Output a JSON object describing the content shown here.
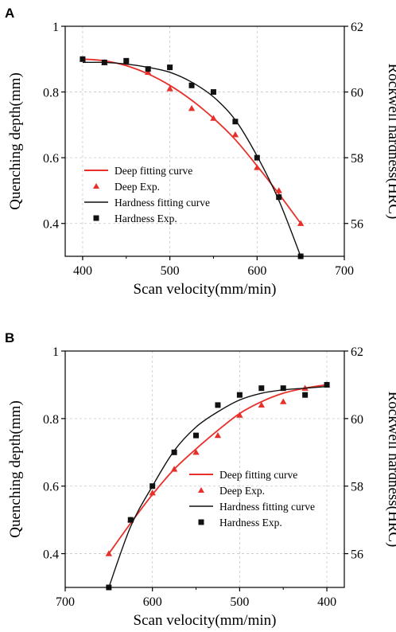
{
  "chart_data": [
    {
      "panel_label": "A",
      "type": "line",
      "xlabel": "Scan velocity(mm/min)",
      "ylabel_left": "Quenching depth(mm)",
      "ylabel_right": "Rockwell hardness(HRC)",
      "xlim": [
        380,
        700
      ],
      "x_reversed": false,
      "ylim_left": [
        0.3,
        1.0
      ],
      "ylim_right": [
        55,
        62
      ],
      "x_ticks": [
        400,
        500,
        600,
        700
      ],
      "y_left_ticks": [
        0.4,
        0.6,
        0.8,
        1.0
      ],
      "y_right_ticks": [
        56,
        58,
        60,
        62
      ],
      "legend": [
        "Deep fitting curve",
        "Deep Exp.",
        "Hardness fitting curve",
        "Hardness Exp."
      ],
      "legend_position": "lower-left",
      "grid": true,
      "series": [
        {
          "name": "Deep fitting curve",
          "axis": "left",
          "kind": "line",
          "color": "#e8302a",
          "x": [
            400,
            425,
            450,
            475,
            500,
            525,
            550,
            575,
            600,
            625,
            650
          ],
          "y": [
            0.9,
            0.895,
            0.88,
            0.855,
            0.82,
            0.775,
            0.72,
            0.655,
            0.575,
            0.49,
            0.4
          ]
        },
        {
          "name": "Deep Exp.",
          "axis": "left",
          "kind": "triangle",
          "color": "#e8302a",
          "x": [
            400,
            425,
            450,
            475,
            500,
            525,
            550,
            575,
            600,
            625,
            650
          ],
          "y": [
            0.9,
            0.89,
            0.89,
            0.86,
            0.81,
            0.75,
            0.72,
            0.67,
            0.57,
            0.5,
            0.4
          ]
        },
        {
          "name": "Hardness fitting curve",
          "axis": "right",
          "kind": "line",
          "color": "#111111",
          "x": [
            400,
            425,
            450,
            475,
            500,
            525,
            550,
            575,
            600,
            625,
            650
          ],
          "y": [
            60.9,
            60.9,
            60.85,
            60.75,
            60.6,
            60.3,
            59.85,
            59.15,
            58.05,
            56.7,
            55.0
          ]
        },
        {
          "name": "Hardness Exp.",
          "axis": "right",
          "kind": "square",
          "color": "#111111",
          "x": [
            400,
            425,
            450,
            475,
            500,
            525,
            550,
            575,
            600,
            625,
            650
          ],
          "y": [
            61.0,
            60.9,
            60.95,
            60.7,
            60.75,
            60.2,
            60.0,
            59.1,
            58.0,
            56.8,
            55.0
          ]
        }
      ]
    },
    {
      "panel_label": "B",
      "type": "line",
      "xlabel": "Scan velocity(mm/min)",
      "ylabel_left": "Quenching depth(mm)",
      "ylabel_right": "Rockwell hardness(HRC)",
      "xlim": [
        700,
        380
      ],
      "x_reversed": true,
      "ylim_left": [
        0.3,
        1.0
      ],
      "ylim_right": [
        55,
        62
      ],
      "x_ticks": [
        700,
        600,
        500,
        400
      ],
      "y_left_ticks": [
        0.4,
        0.6,
        0.8,
        1.0
      ],
      "y_right_ticks": [
        56,
        58,
        60,
        62
      ],
      "legend": [
        "Deep fitting curve",
        "Deep Exp.",
        "Hardness fitting curve",
        "Hardness Exp."
      ],
      "legend_position": "lower-right",
      "grid": true,
      "series": [
        {
          "name": "Deep fitting curve",
          "axis": "left",
          "kind": "line",
          "color": "#e8302a",
          "x": [
            400,
            425,
            450,
            475,
            500,
            525,
            550,
            575,
            600,
            625,
            650
          ],
          "y": [
            0.9,
            0.89,
            0.875,
            0.85,
            0.815,
            0.765,
            0.71,
            0.65,
            0.575,
            0.49,
            0.4
          ]
        },
        {
          "name": "Deep Exp.",
          "axis": "left",
          "kind": "triangle",
          "color": "#e8302a",
          "x": [
            400,
            425,
            450,
            475,
            500,
            525,
            550,
            575,
            600,
            625,
            650
          ],
          "y": [
            0.9,
            0.89,
            0.85,
            0.84,
            0.81,
            0.75,
            0.7,
            0.65,
            0.58,
            0.5,
            0.4
          ]
        },
        {
          "name": "Hardness fitting curve",
          "axis": "right",
          "kind": "line",
          "color": "#111111",
          "x": [
            400,
            425,
            450,
            475,
            500,
            525,
            550,
            575,
            600,
            625,
            650
          ],
          "y": [
            60.95,
            60.9,
            60.85,
            60.75,
            60.55,
            60.2,
            59.75,
            59.05,
            58.0,
            56.8,
            55.0
          ]
        },
        {
          "name": "Hardness Exp.",
          "axis": "right",
          "kind": "square",
          "color": "#111111",
          "x": [
            400,
            425,
            450,
            475,
            500,
            525,
            550,
            575,
            600,
            625,
            650
          ],
          "y": [
            61.0,
            60.7,
            60.9,
            60.9,
            60.7,
            60.4,
            59.5,
            59.0,
            58.0,
            57.0,
            55.0
          ]
        }
      ]
    }
  ]
}
